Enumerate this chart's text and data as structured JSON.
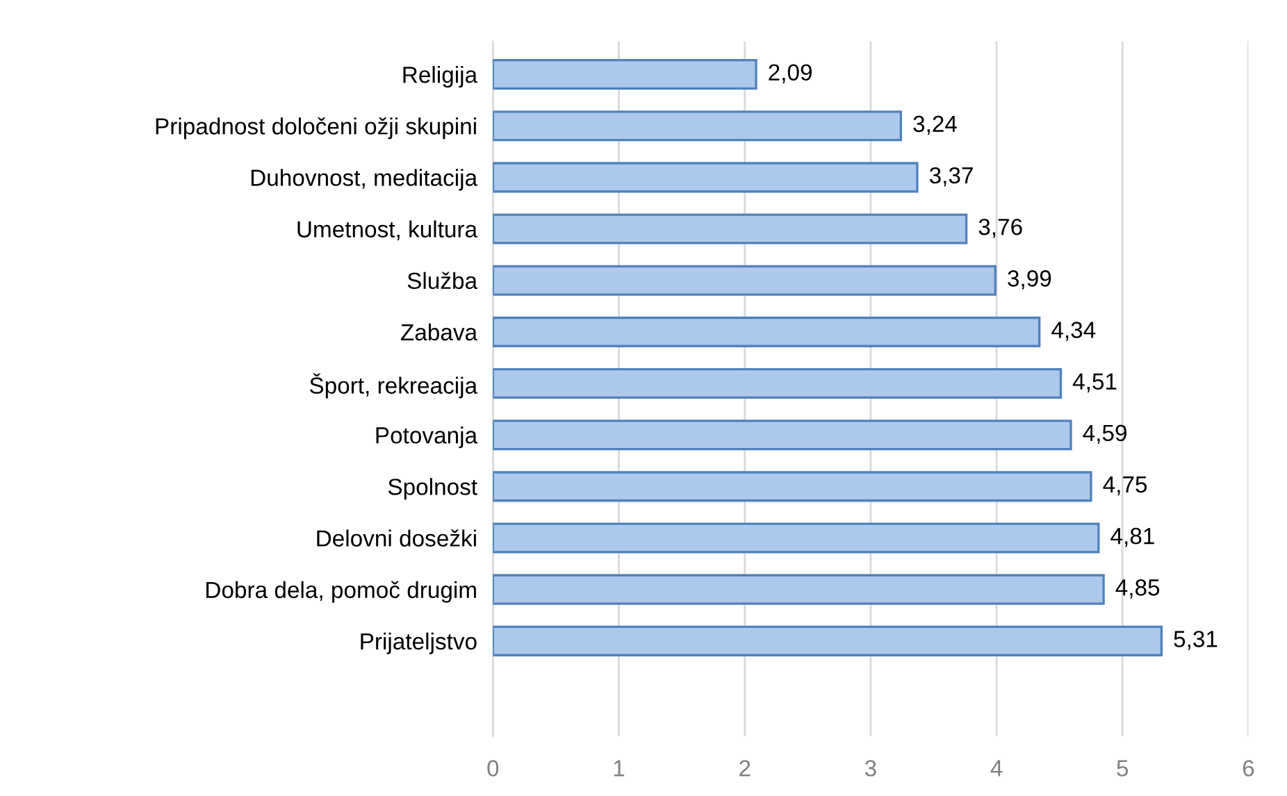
{
  "chart_data": {
    "type": "bar",
    "orientation": "horizontal",
    "categories": [
      "Religija",
      "Pripadnost določeni ožji skupini",
      "Duhovnost, meditacija",
      "Umetnost, kultura",
      "Služba",
      "Zabava",
      "Šport, rekreacija",
      "Potovanja",
      "Spolnost",
      "Delovni dosežki",
      "Dobra dela, pomoč drugim",
      "Prijateljstvo"
    ],
    "values": [
      2.09,
      3.24,
      3.37,
      3.76,
      3.99,
      4.34,
      4.51,
      4.59,
      4.75,
      4.81,
      4.85,
      5.31
    ],
    "value_labels": [
      "2,09",
      "3,24",
      "3,37",
      "3,76",
      "3,99",
      "4,34",
      "4,51",
      "4,59",
      "4,75",
      "4,81",
      "4,85",
      "5,31"
    ],
    "color": "#aec8ec",
    "xlim": [
      0,
      6
    ],
    "xticks": [
      0,
      1,
      2,
      3,
      4,
      5,
      6
    ],
    "grid": "x",
    "legend": false
  }
}
